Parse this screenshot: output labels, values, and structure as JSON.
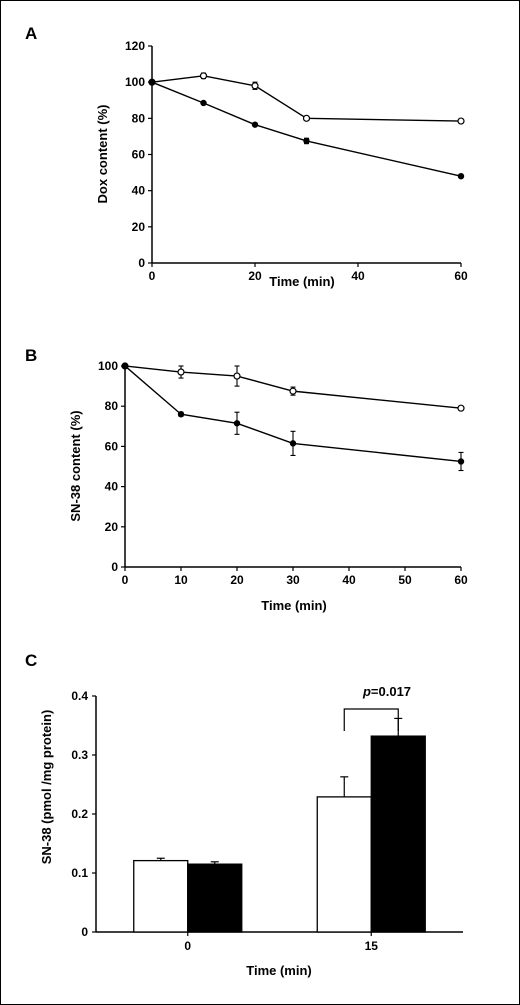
{
  "chart_data": [
    {
      "panel": "A",
      "type": "line",
      "xlabel": "Time (min)",
      "ylabel": "Dox content (%)",
      "xlim": [
        0,
        60
      ],
      "ylim": [
        0,
        120
      ],
      "xticks": [
        0,
        20,
        40,
        60
      ],
      "yticks": [
        0,
        20,
        40,
        60,
        80,
        100,
        120
      ],
      "grid": false,
      "series": [
        {
          "marker": "open",
          "x": [
            0,
            10,
            20,
            30,
            60
          ],
          "y": [
            100,
            103.5,
            98,
            80,
            78.5
          ],
          "err": [
            1,
            1.5,
            2,
            1,
            0.5
          ]
        },
        {
          "marker": "filled",
          "x": [
            0,
            10,
            20,
            30,
            60
          ],
          "y": [
            100,
            88.5,
            76.5,
            67.5,
            48
          ],
          "err": [
            1,
            0.5,
            0.5,
            1.5,
            0.5
          ]
        }
      ]
    },
    {
      "panel": "B",
      "type": "line",
      "xlabel": "Time (min)",
      "ylabel": "SN-38 content (%)",
      "xlim": [
        0,
        60
      ],
      "ylim": [
        0,
        100
      ],
      "xticks": [
        0,
        10,
        20,
        30,
        40,
        50,
        60
      ],
      "yticks": [
        0,
        20,
        40,
        60,
        80,
        100
      ],
      "grid": false,
      "series": [
        {
          "marker": "open",
          "x": [
            0,
            10,
            20,
            30,
            60
          ],
          "y": [
            100,
            97,
            95,
            87.5,
            79
          ],
          "err": [
            0.5,
            3,
            5,
            2,
            0.5
          ]
        },
        {
          "marker": "filled",
          "x": [
            0,
            10,
            20,
            30,
            60
          ],
          "y": [
            100,
            76,
            71.5,
            61.5,
            52.5
          ],
          "err": [
            0.5,
            1,
            5.5,
            6,
            4.5
          ]
        }
      ]
    },
    {
      "panel": "C",
      "type": "bar",
      "xlabel": "Time (min)",
      "ylabel": "SN-38 (pmol /mg protein)",
      "categories": [
        "0",
        "15"
      ],
      "ylim": [
        0,
        0.4
      ],
      "yticks": [
        0,
        0.1,
        0.2,
        0.3,
        0.4
      ],
      "grid": false,
      "series": [
        {
          "fill": "white",
          "values": [
            0.121,
            0.229
          ],
          "err": [
            0.004,
            0.034
          ]
        },
        {
          "fill": "black",
          "values": [
            0.115,
            0.332
          ],
          "err": [
            0.004,
            0.03
          ]
        }
      ],
      "annotation": {
        "italic": "p",
        "text": "=0.017",
        "category": "15"
      }
    }
  ]
}
